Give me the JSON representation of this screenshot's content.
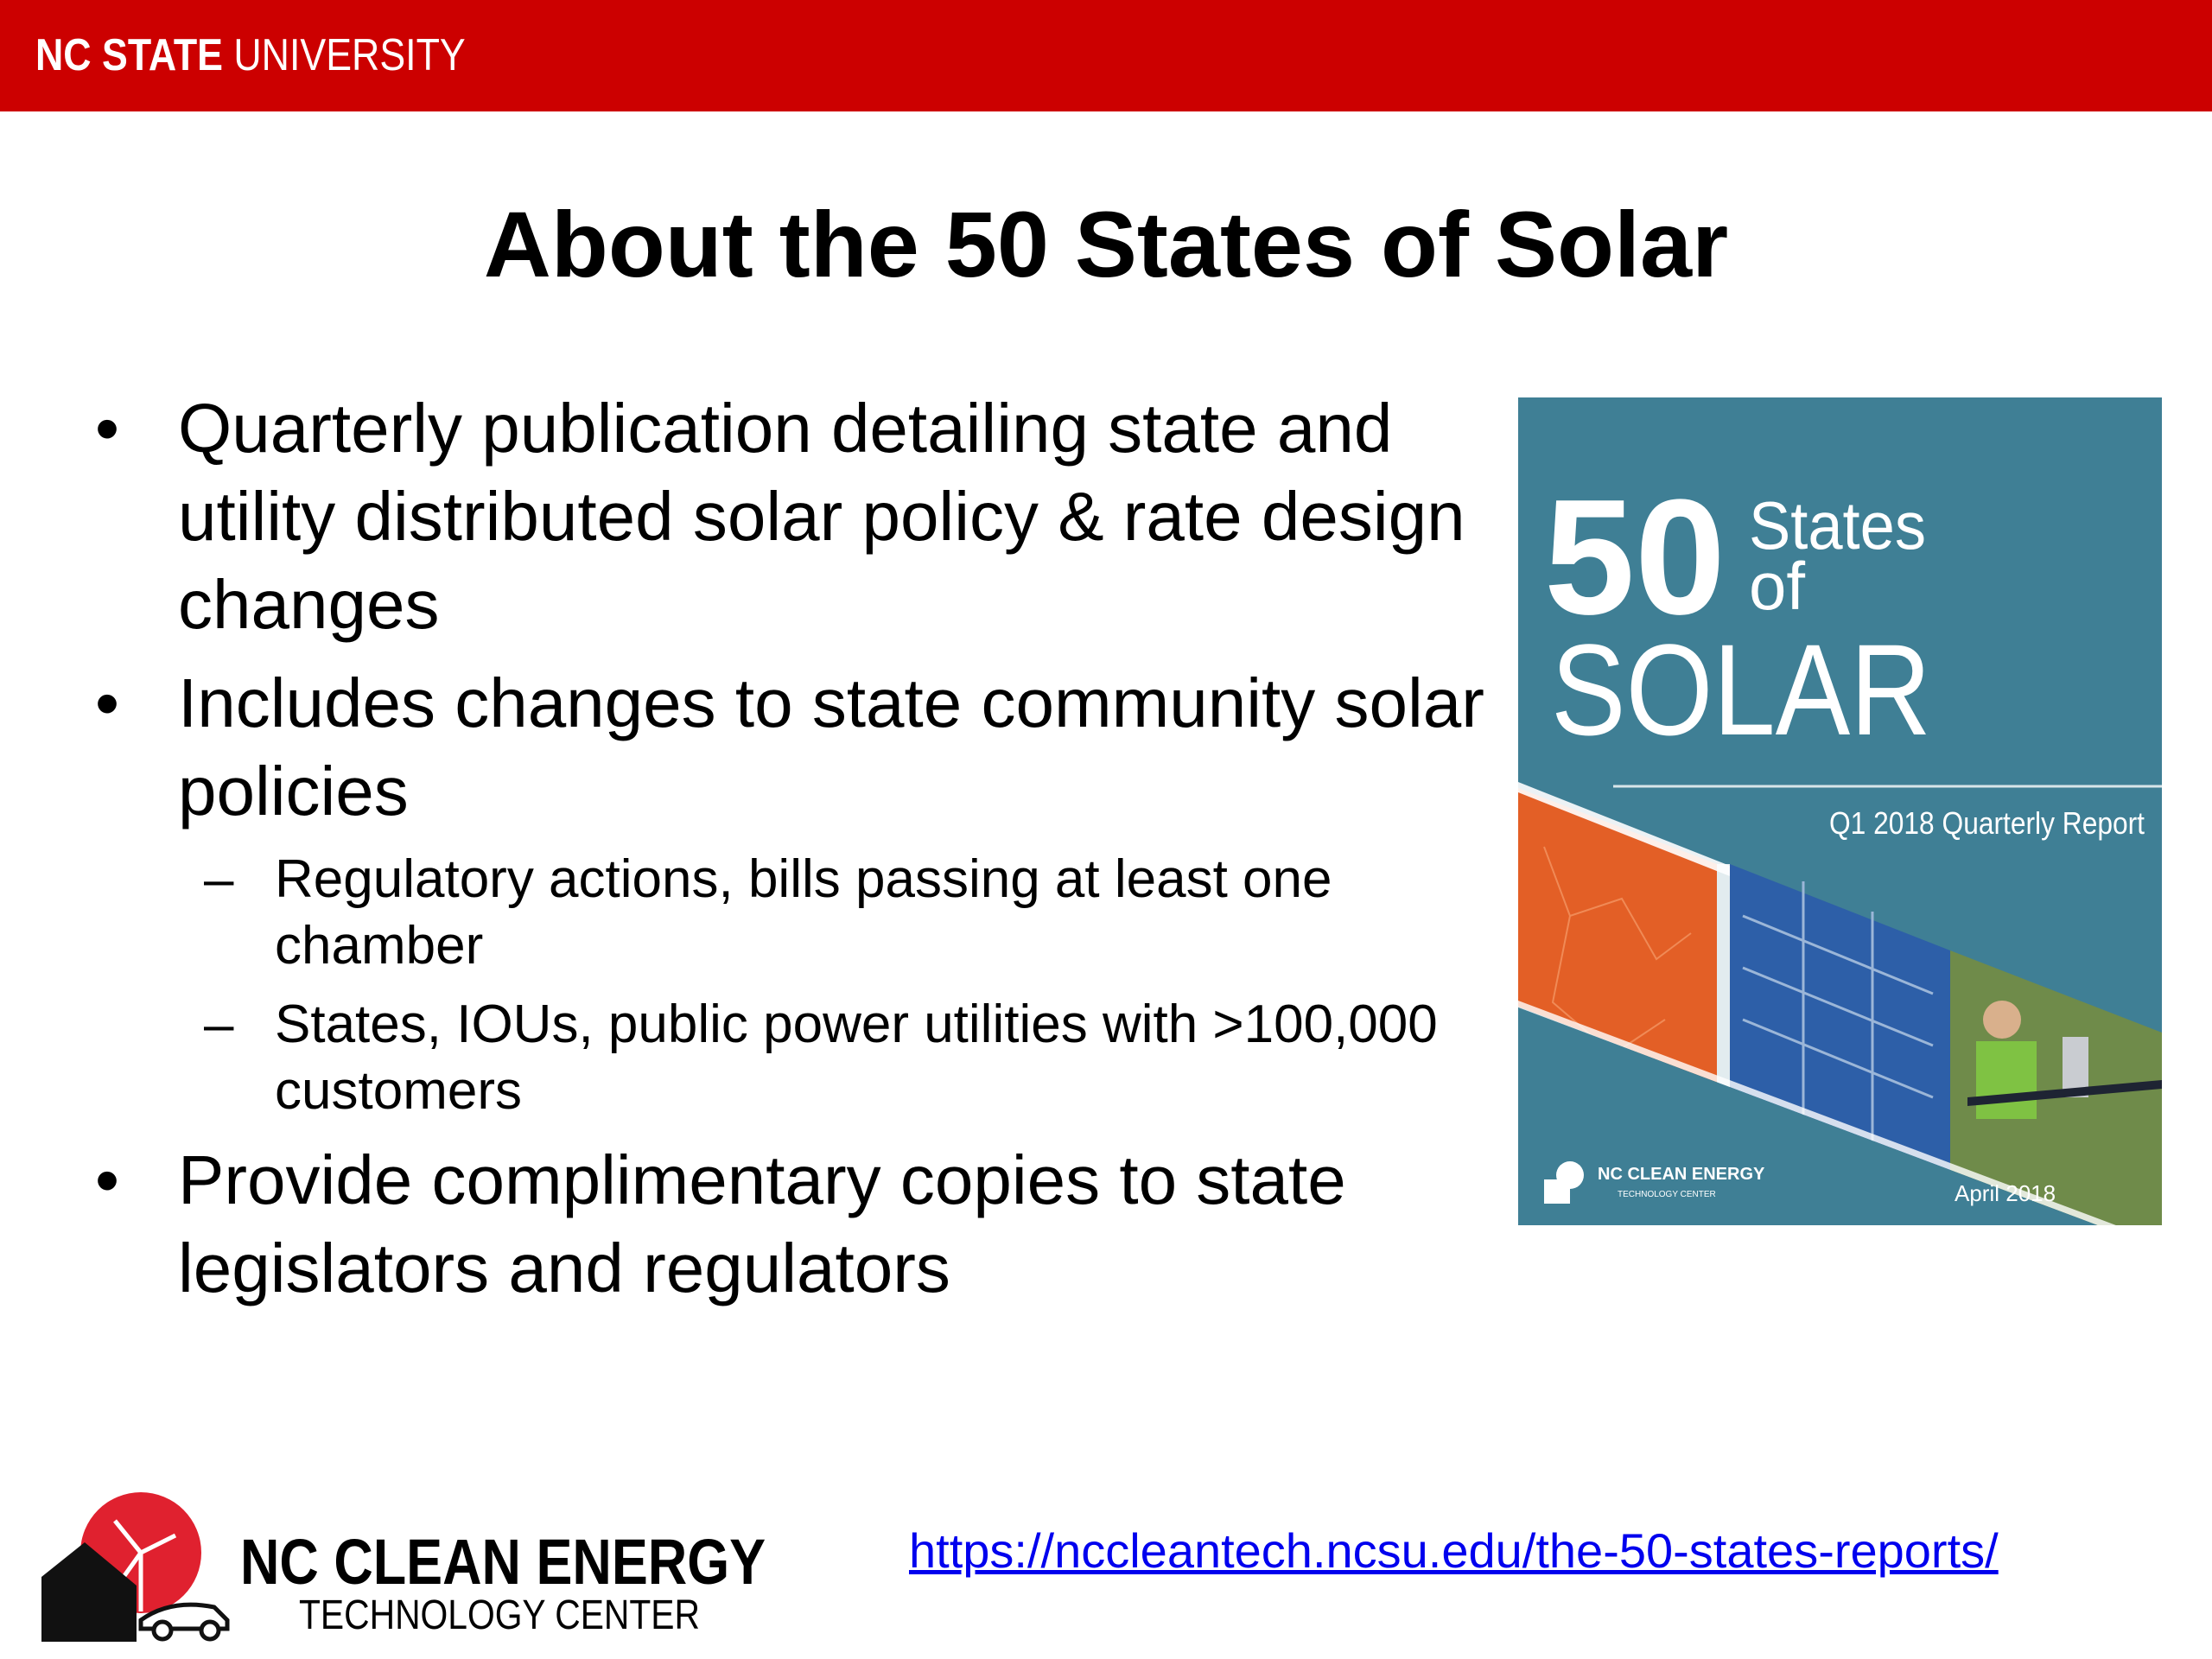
{
  "header": {
    "university_bold": "NC STATE",
    "university_rest": " UNIVERSITY"
  },
  "slide": {
    "title": "About the 50 States of Solar",
    "bullets": [
      {
        "text": "Quarterly publication detailing state and utility distributed solar policy & rate design changes"
      },
      {
        "text": "Includes changes to state community solar policies"
      },
      {
        "text": "Regulatory actions, bills passing at least one chamber",
        "level": 2
      },
      {
        "text": "States, IOUs, public power utilities with >100,000 customers",
        "level": 2
      },
      {
        "text": "Provide complimentary copies to state legislators and regulators"
      }
    ],
    "bullet_symbol": "•",
    "dash_symbol": "–"
  },
  "cover": {
    "num": "50",
    "states": "States",
    "of": "of",
    "solar": "SOLAR",
    "subtitle": "Q1 2018 Quarterly Report",
    "org_line1": "NC CLEAN ENERGY",
    "org_line2": "TECHNOLOGY CENTER",
    "date": "April 2018",
    "colors": {
      "background": "#3f7f95",
      "map": "#e35f26"
    }
  },
  "footer": {
    "logo_line1": "NC CLEAN ENERGY",
    "logo_line2": "TECHNOLOGY CENTER",
    "link": "https://nccleantech.ncsu.edu/the-50-states-reports/"
  },
  "colors": {
    "brand_red": "#cc0000",
    "link": "#0000ee"
  }
}
